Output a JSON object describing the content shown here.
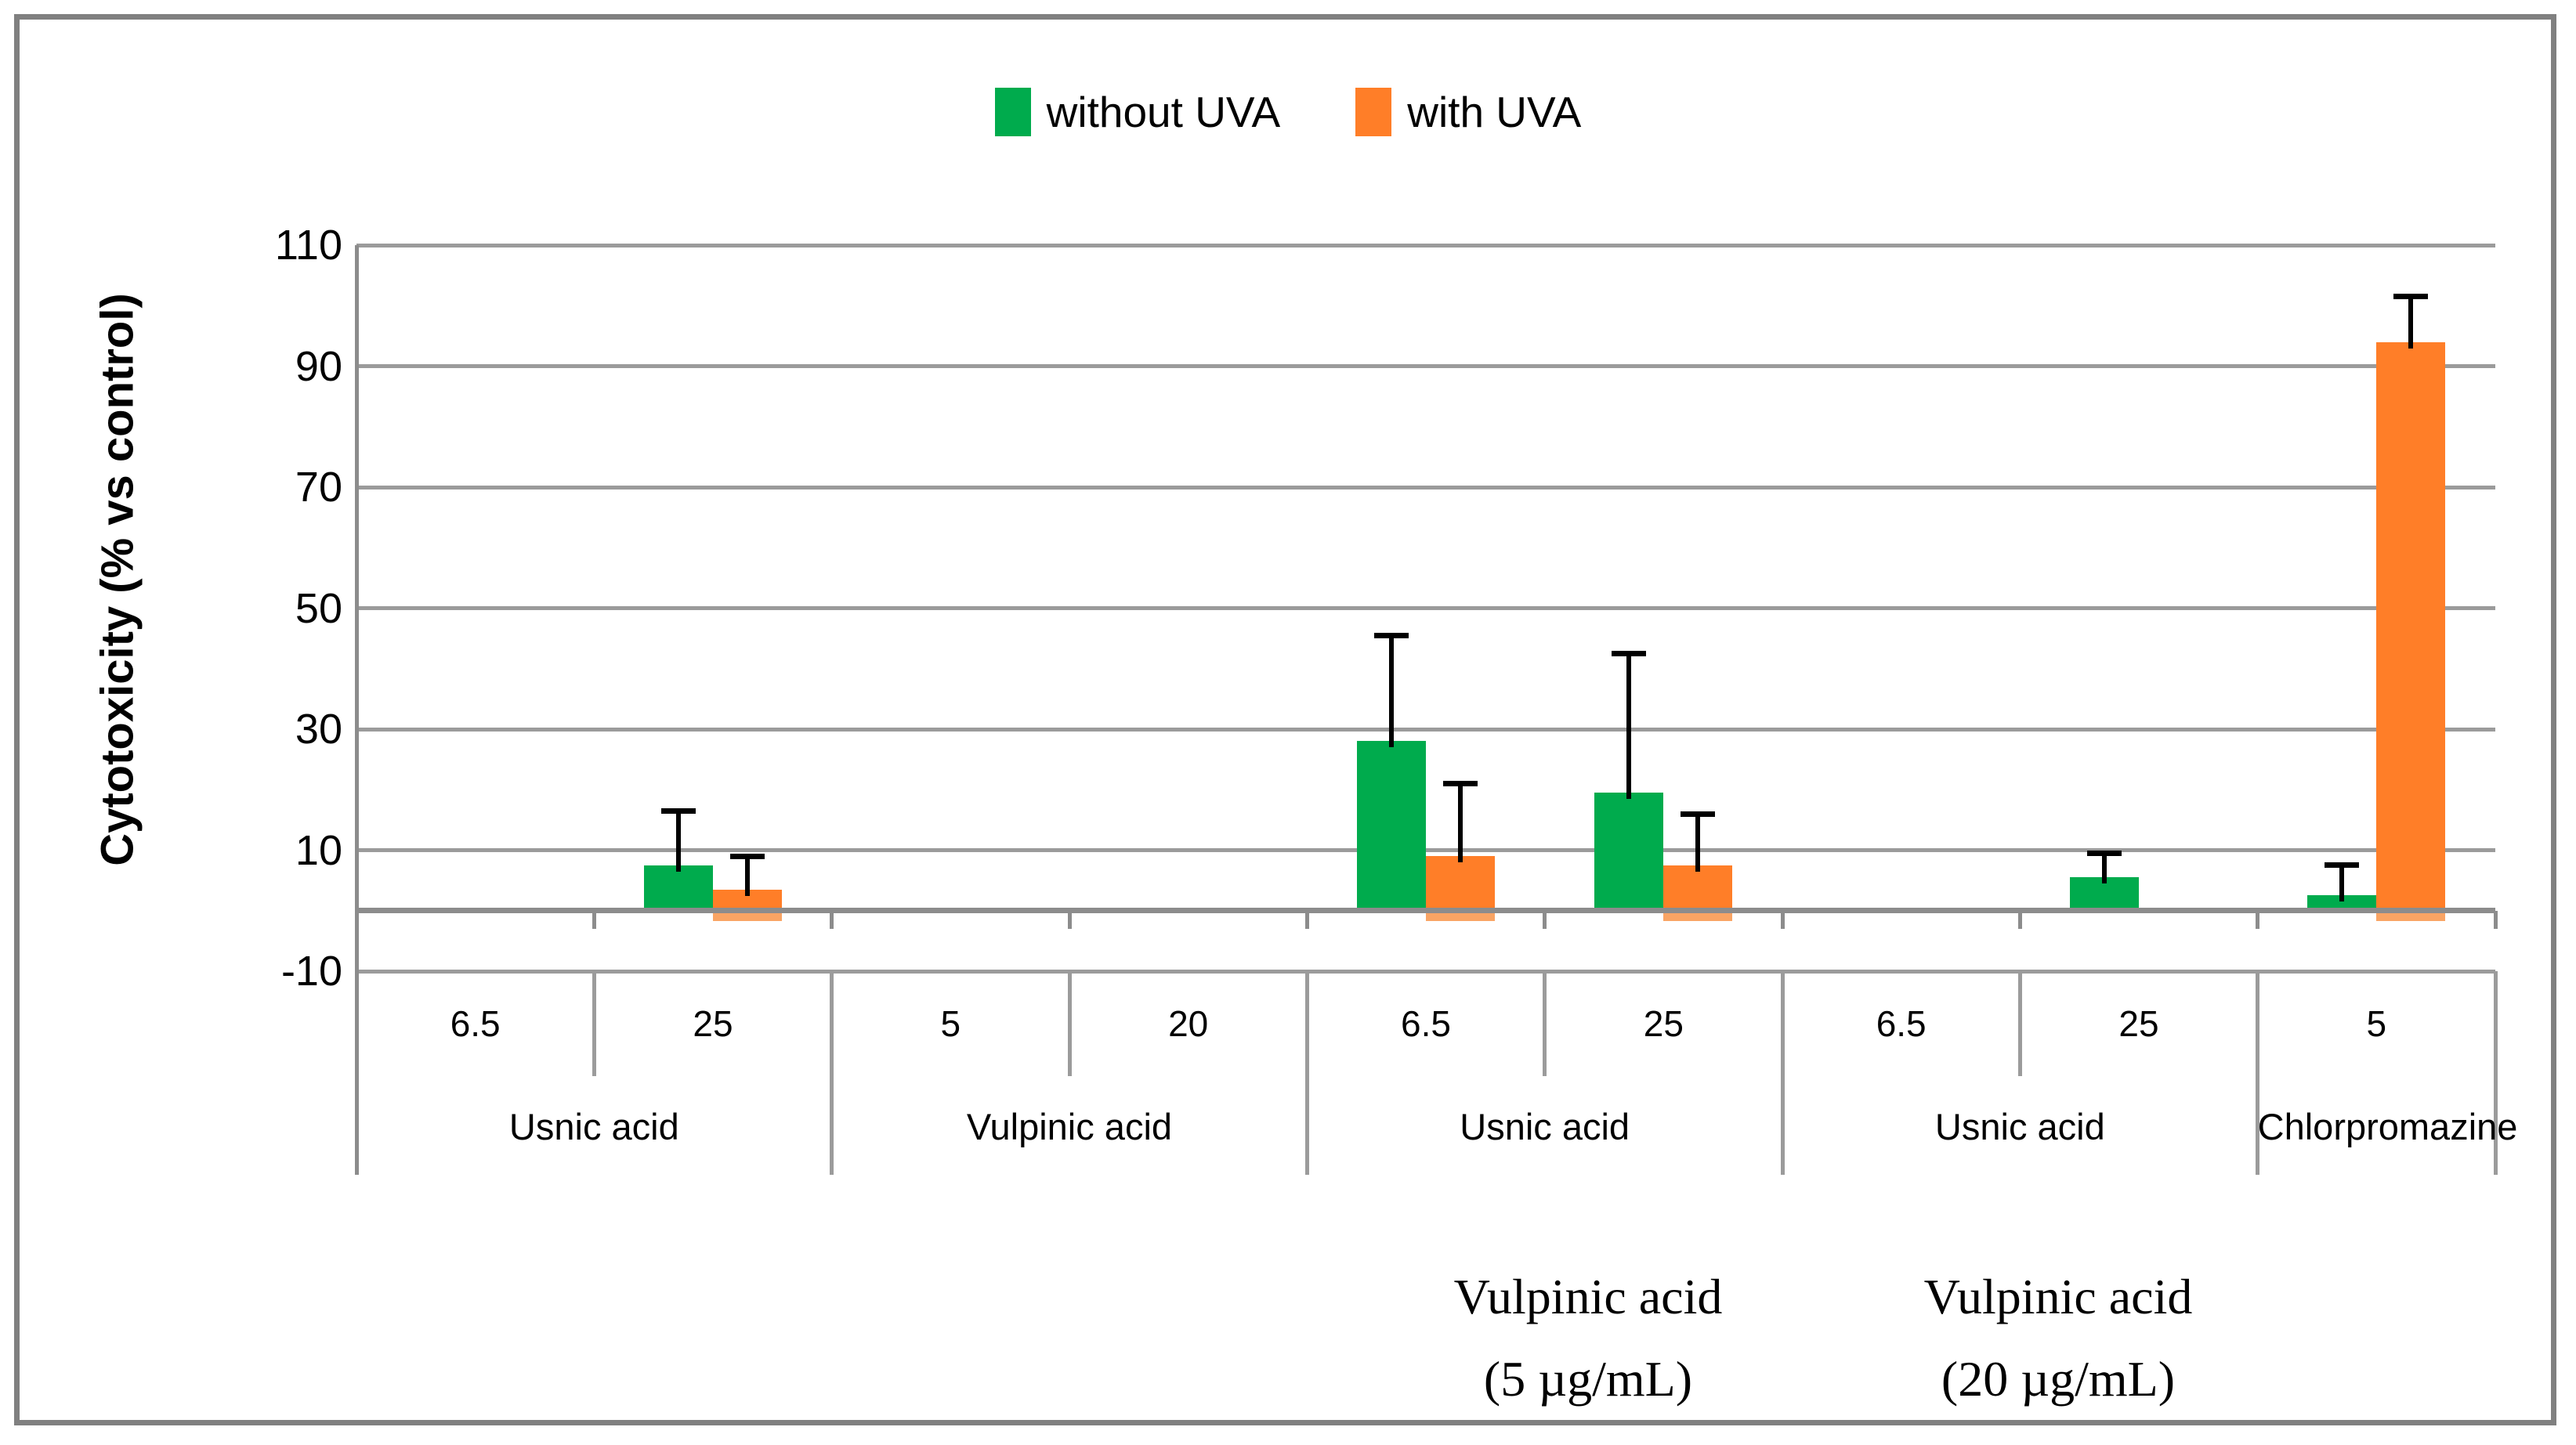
{
  "legend": {
    "items": [
      {
        "label": "without UVA",
        "color": "#00AB4D"
      },
      {
        "label": "with UVA",
        "color": "#FF7E28"
      }
    ]
  },
  "chart_data": {
    "type": "bar",
    "title": "",
    "ylabel": "Cytotoxicity (% vs control)",
    "xlabel": "",
    "ylim": [
      -10,
      110
    ],
    "yticks": [
      -10,
      10,
      30,
      50,
      70,
      90,
      110
    ],
    "grid": "horizontal",
    "legend_position": "top-center",
    "categories": [
      "6.5",
      "25",
      "5",
      "20",
      "6.5",
      "25",
      "6.5",
      "25",
      "5"
    ],
    "group_spans": [
      {
        "label": "Usnic acid",
        "from": 0,
        "to": 1
      },
      {
        "label": "Vulpinic acid",
        "from": 2,
        "to": 3
      },
      {
        "label": "Usnic acid",
        "from": 4,
        "to": 5
      },
      {
        "label": "Usnic acid",
        "from": 6,
        "to": 7
      },
      {
        "label": "Chlorpromazine",
        "from": 8,
        "to": 8
      }
    ],
    "series": [
      {
        "name": "without UVA",
        "color": "#00AB4D",
        "values": [
          null,
          7.5,
          null,
          null,
          28,
          19.5,
          null,
          5.5,
          2.5
        ],
        "err_top": [
          null,
          16.5,
          null,
          null,
          45.5,
          42.5,
          null,
          9.5,
          7.5
        ]
      },
      {
        "name": "with UVA",
        "color": "#FF7E28",
        "lip_color": "#F9A464",
        "values": [
          null,
          3.5,
          null,
          null,
          9,
          7.5,
          null,
          null,
          94
        ],
        "err_top": [
          null,
          9,
          null,
          null,
          21,
          16,
          null,
          null,
          101.5
        ]
      }
    ],
    "annotations": [
      {
        "line1": "Vulpinic acid",
        "line2": "(5 µg/mL)",
        "span": [
          4,
          5
        ]
      },
      {
        "line1": "Vulpinic acid",
        "line2": "(20 µg/mL)",
        "span": [
          6,
          7
        ]
      }
    ]
  }
}
